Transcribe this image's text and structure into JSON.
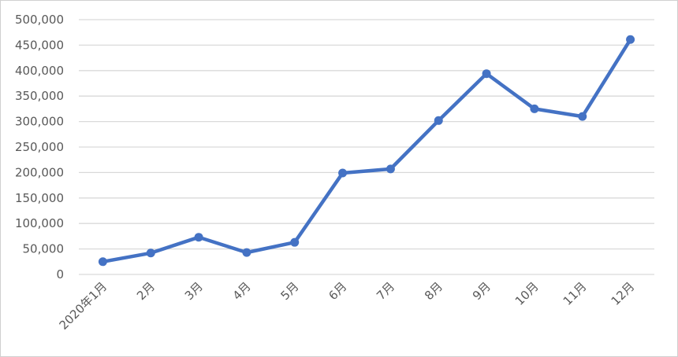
{
  "chart_data": {
    "type": "line",
    "categories": [
      "2020年1月",
      "2月",
      "3月",
      "4月",
      "5月",
      "6月",
      "7月",
      "8月",
      "9月",
      "10月",
      "11月",
      "12月"
    ],
    "series": [
      {
        "values": [
          25000,
          42000,
          73000,
          43000,
          63000,
          199000,
          207000,
          302000,
          394000,
          325000,
          310000,
          461000
        ],
        "color": "#4472c4"
      }
    ],
    "yticks": [
      "0",
      "50,000",
      "100,000",
      "150,000",
      "200,000",
      "250,000",
      "300,000",
      "350,000",
      "400,000",
      "450,000",
      "500,000"
    ],
    "ylim": [
      0,
      500000
    ],
    "grid": true,
    "legend": "none",
    "markers": true
  }
}
